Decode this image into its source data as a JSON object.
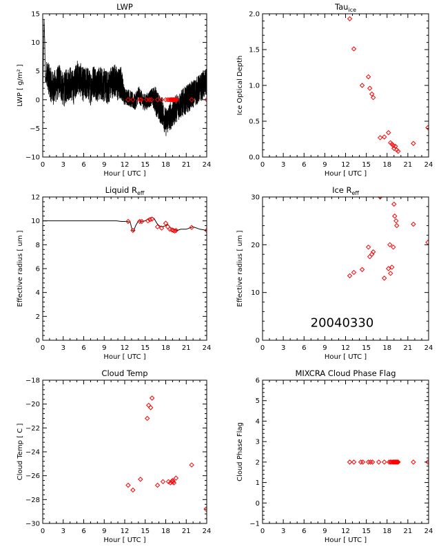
{
  "chart_data": [
    {
      "id": "lwp",
      "type": "line",
      "title": "LWP",
      "title_sub": "",
      "xlabel": "Hour [ UTC ]",
      "ylabel": "LWP [ g/m² ]",
      "xlim": [
        0,
        24
      ],
      "ylim": [
        -10,
        15
      ],
      "xticks": [
        0,
        3,
        6,
        9,
        12,
        15,
        18,
        21,
        24
      ],
      "yticks": [
        -10,
        -5,
        0,
        5,
        10,
        15
      ],
      "ytick_labels": [
        "−10",
        "−5",
        "0",
        "5",
        "10",
        "15"
      ],
      "series": [
        {
          "type": "line",
          "color": "#000000",
          "x": [
            0.0,
            0.2,
            0.3,
            0.4,
            0.6,
            1.0,
            1.5,
            2.0,
            2.5,
            3.0,
            3.5,
            4.0,
            4.5,
            5.0,
            5.5,
            6.0,
            6.5,
            7.0,
            7.5,
            8.0,
            8.5,
            9.0,
            9.5,
            10.0,
            10.5,
            11.0,
            11.5,
            12.0,
            12.5,
            13.0,
            13.5,
            14.0,
            14.5,
            15.0,
            15.5,
            16.0,
            16.5,
            17.0,
            17.5,
            18.0,
            18.5,
            19.0,
            19.5,
            20.0,
            20.5,
            21.0,
            21.5,
            22.0,
            22.5,
            23.0,
            23.5,
            24.0
          ],
          "y": [
            0.0,
            14.0,
            10.0,
            3.0,
            5.0,
            3.0,
            2.0,
            2.5,
            3.5,
            1.5,
            2.5,
            3.0,
            2.0,
            4.0,
            3.5,
            2.5,
            3.0,
            2.0,
            3.5,
            2.5,
            3.0,
            2.5,
            2.0,
            3.0,
            3.5,
            2.5,
            3.0,
            0.5,
            0.5,
            0.0,
            -0.5,
            1.0,
            0.0,
            -0.5,
            0.0,
            0.5,
            0.0,
            -1.5,
            -2.0,
            -4.0,
            -3.0,
            -2.5,
            -1.5,
            -1.0,
            -0.5,
            0.0,
            0.5,
            1.0,
            1.5,
            2.0,
            2.5,
            3.0
          ],
          "noise_amplitude": [
            0,
            0,
            0,
            0,
            2.5,
            3.0,
            3.0,
            3.0,
            3.0,
            3.0,
            3.0,
            3.0,
            3.0,
            3.0,
            3.0,
            3.0,
            3.0,
            3.0,
            3.0,
            3.0,
            3.0,
            3.0,
            3.0,
            3.0,
            3.0,
            3.0,
            3.0,
            1.5,
            1.5,
            1.5,
            1.5,
            1.5,
            1.5,
            1.5,
            1.5,
            1.5,
            2.5,
            2.5,
            2.5,
            2.5,
            2.5,
            2.5,
            2.5,
            2.5,
            2.5,
            2.5,
            2.5,
            2.5,
            2.5,
            2.5,
            2.5,
            2.5
          ]
        },
        {
          "type": "scatter",
          "color": "#ff0000",
          "x": [
            12.5,
            13.2,
            14.2,
            14.4,
            15.2,
            15.6,
            15.9,
            16.8,
            17.4,
            18.0,
            18.3,
            18.5,
            18.7,
            18.8,
            18.9,
            19.0,
            19.1,
            19.2,
            19.3,
            19.4,
            19.5,
            19.6,
            21.8,
            24.0
          ],
          "y": [
            0,
            0,
            0,
            0,
            0,
            0,
            0,
            0,
            0,
            0,
            0,
            0,
            0,
            0,
            0,
            0,
            0,
            0,
            0,
            0,
            0,
            0,
            0,
            0
          ]
        }
      ]
    },
    {
      "id": "tau",
      "type": "scatter",
      "title": "Tau",
      "title_sub": "ice",
      "xlabel": "Hour [ UTC ]",
      "ylabel": "Ice Optical Depth",
      "xlim": [
        0,
        24
      ],
      "ylim": [
        0,
        2
      ],
      "xticks": [
        0,
        3,
        6,
        9,
        12,
        15,
        18,
        21,
        24
      ],
      "yticks": [
        0,
        0.5,
        1,
        1.5,
        2
      ],
      "ytick_labels": [
        "0.0",
        "0.5",
        "1.0",
        "1.5",
        "2.0"
      ],
      "series": [
        {
          "type": "scatter",
          "color": "#ff0000",
          "x": [
            12.6,
            13.2,
            14.4,
            15.3,
            15.5,
            15.8,
            16.0,
            17.0,
            17.6,
            18.2,
            18.5,
            18.7,
            18.9,
            19.0,
            19.2,
            19.4,
            19.6,
            21.8,
            23.9
          ],
          "y": [
            1.93,
            1.51,
            1.0,
            1.12,
            0.96,
            0.88,
            0.83,
            0.27,
            0.28,
            0.34,
            0.2,
            0.18,
            0.16,
            0.12,
            0.15,
            0.1,
            0.08,
            0.19,
            0.41
          ]
        }
      ]
    },
    {
      "id": "liq-reff",
      "type": "line",
      "title": "Liquid R",
      "title_sub": "eff",
      "xlabel": "Hour [ UTC ]",
      "ylabel": "Effective radius [ um ]",
      "xlim": [
        0,
        24
      ],
      "ylim": [
        0,
        12
      ],
      "xticks": [
        0,
        3,
        6,
        9,
        12,
        15,
        18,
        21,
        24
      ],
      "yticks": [
        0,
        2,
        4,
        6,
        8,
        10,
        12
      ],
      "ytick_labels": [
        "0",
        "2",
        "4",
        "6",
        "8",
        "10",
        "12"
      ],
      "series": [
        {
          "type": "line",
          "color": "#000000",
          "x": [
            0,
            6,
            10.8,
            11.5,
            12.3,
            12.8,
            13.1,
            13.3,
            13.6,
            14.0,
            14.5,
            15.0,
            15.5,
            16.0,
            16.3,
            16.7,
            17.0,
            17.5,
            18.0,
            18.3,
            18.6,
            18.9,
            19.3,
            19.7,
            20.2,
            21.0,
            22.0,
            23.0,
            24.0
          ],
          "y": [
            10.0,
            10.0,
            10.0,
            9.95,
            9.95,
            9.9,
            9.2,
            9.15,
            9.6,
            10.0,
            9.95,
            10.0,
            10.2,
            10.3,
            10.2,
            9.8,
            9.6,
            9.5,
            9.6,
            9.7,
            9.5,
            9.3,
            9.3,
            9.2,
            9.3,
            9.3,
            9.5,
            9.3,
            9.2
          ]
        },
        {
          "type": "scatter",
          "color": "#ff0000",
          "x": [
            12.5,
            13.2,
            14.2,
            14.5,
            15.4,
            15.7,
            16.0,
            16.8,
            17.4,
            18.0,
            18.3,
            18.6,
            18.9,
            19.1,
            19.3,
            19.5,
            21.8,
            24.0
          ],
          "y": [
            9.95,
            9.2,
            9.95,
            9.95,
            10.0,
            10.1,
            10.15,
            9.5,
            9.4,
            9.8,
            9.5,
            9.3,
            9.25,
            9.2,
            9.15,
            9.2,
            9.45,
            9.2
          ]
        }
      ]
    },
    {
      "id": "ice-reff",
      "type": "scatter",
      "title": "Ice R",
      "title_sub": "eff",
      "xlabel": "Hour [ UTC ]",
      "ylabel": "Effective radius [ um ]",
      "xlim": [
        0,
        24
      ],
      "ylim": [
        0,
        30
      ],
      "xticks": [
        0,
        3,
        6,
        9,
        12,
        15,
        18,
        21,
        24
      ],
      "yticks": [
        0,
        10,
        20,
        30
      ],
      "ytick_labels": [
        "0",
        "10",
        "20",
        "30"
      ],
      "annotation": "20040330",
      "series": [
        {
          "type": "scatter",
          "color": "#ff0000",
          "x": [
            12.6,
            13.2,
            14.4,
            15.3,
            15.5,
            15.8,
            16.0,
            17.0,
            17.6,
            18.2,
            18.4,
            18.5,
            18.7,
            18.9,
            19.0,
            19.1,
            19.3,
            19.4,
            21.8,
            23.9
          ],
          "y": [
            13.5,
            14.2,
            14.8,
            19.5,
            17.5,
            18.0,
            18.5,
            30.0,
            13.0,
            15.0,
            20.0,
            14.0,
            15.3,
            19.5,
            28.5,
            26.0,
            25.0,
            24.0,
            24.3,
            20.5
          ]
        }
      ]
    },
    {
      "id": "cloud-temp",
      "type": "scatter",
      "title": "Cloud Temp",
      "title_sub": "",
      "xlabel": "Hour [ UTC ]",
      "ylabel": "Cloud Temp [ C ]",
      "xlim": [
        0,
        24
      ],
      "ylim": [
        -30,
        -18
      ],
      "xticks": [
        0,
        3,
        6,
        9,
        12,
        15,
        18,
        21,
        24
      ],
      "yticks": [
        -30,
        -28,
        -26,
        -24,
        -22,
        -20,
        -18
      ],
      "ytick_labels": [
        "−30",
        "−28",
        "−26",
        "−24",
        "−22",
        "−20",
        "−18"
      ],
      "series": [
        {
          "type": "scatter",
          "color": "#ff0000",
          "x": [
            12.5,
            13.2,
            14.3,
            15.3,
            15.5,
            15.8,
            16.0,
            16.8,
            17.6,
            18.4,
            18.7,
            18.9,
            19.0,
            19.1,
            19.2,
            19.5,
            21.8,
            23.9
          ],
          "y": [
            -26.8,
            -27.2,
            -26.3,
            -21.2,
            -20.1,
            -20.3,
            -19.5,
            -26.8,
            -26.5,
            -26.5,
            -26.6,
            -26.5,
            -26.4,
            -26.5,
            -26.6,
            -26.2,
            -25.1,
            -28.8
          ]
        }
      ]
    },
    {
      "id": "phase-flag",
      "type": "scatter",
      "title": "MIXCRA Cloud Phase Flag",
      "title_sub": "",
      "xlabel": "Hour [ UTC ]",
      "ylabel": "Cloud Phase Flag",
      "xlim": [
        0,
        24
      ],
      "ylim": [
        -1,
        6
      ],
      "xticks": [
        0,
        3,
        6,
        9,
        12,
        15,
        18,
        21,
        24
      ],
      "yticks": [
        -1,
        0,
        1,
        2,
        3,
        4,
        5,
        6
      ],
      "ytick_labels": [
        "−1",
        "0",
        "1",
        "2",
        "3",
        "4",
        "5",
        "6"
      ],
      "series": [
        {
          "type": "scatter",
          "color": "#ff0000",
          "x": [
            12.6,
            13.2,
            14.2,
            14.5,
            15.3,
            15.6,
            15.9,
            16.8,
            17.6,
            18.3,
            18.5,
            18.6,
            18.8,
            18.9,
            19.0,
            19.1,
            19.2,
            19.3,
            19.4,
            19.5,
            19.6,
            21.8,
            23.9
          ],
          "y": [
            2,
            2,
            2,
            2,
            2,
            2,
            2,
            2,
            2,
            2,
            2,
            2,
            2,
            2,
            2,
            2,
            2,
            2,
            2,
            2,
            2,
            2,
            2
          ]
        }
      ]
    }
  ]
}
